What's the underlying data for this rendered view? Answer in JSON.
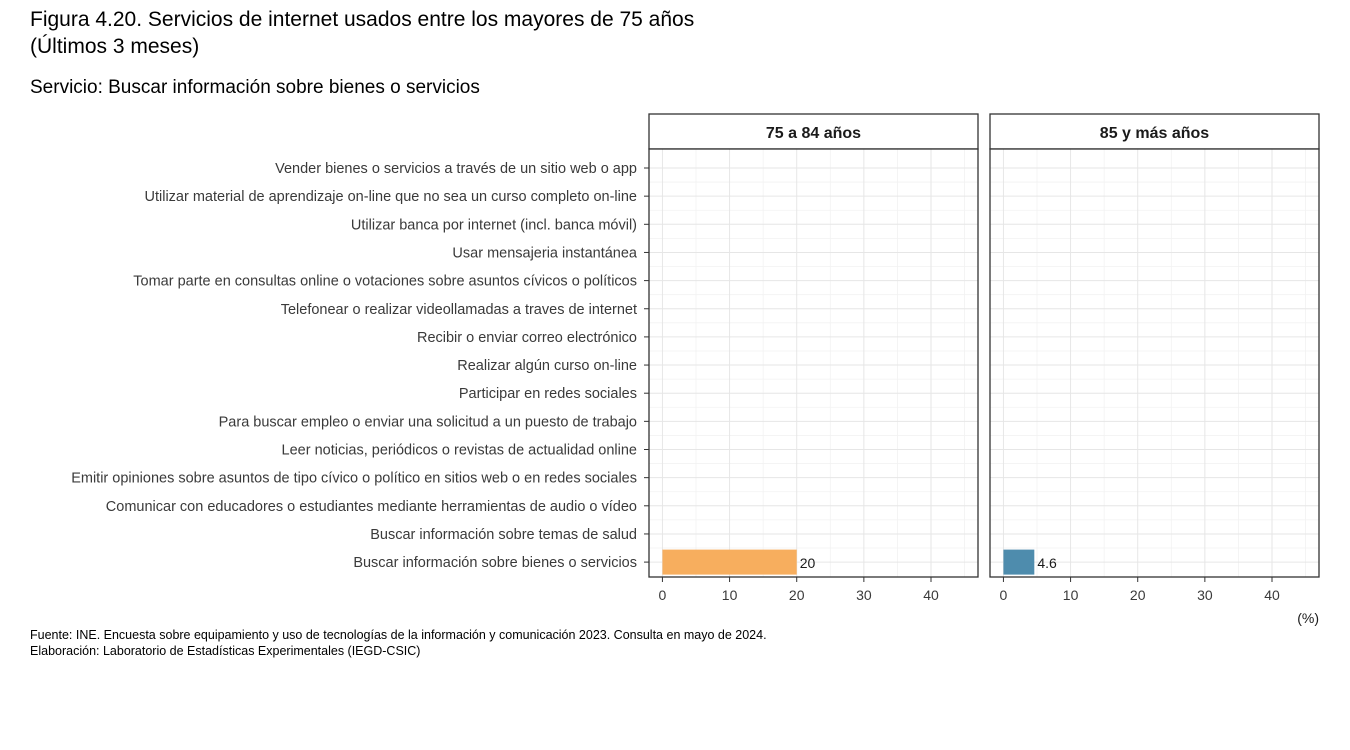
{
  "header": {
    "title_line1": "Figura 4.20.  Servicios de internet usados entre los mayores de 75 años",
    "title_line2": "(Últimos 3 meses)",
    "subtitle": "Servicio: Buscar información sobre bienes o servicios"
  },
  "footer": {
    "source": "Fuente: INE. Encuesta sobre equipamiento y uso de tecnologías de la información y comunicación 2023. Consulta en mayo de 2024.",
    "credit": "Elaboración: Laboratorio de Estadísticas Experimentales (IEGD-CSIC)"
  },
  "chart_data": {
    "type": "bar",
    "orientation": "horizontal",
    "categories": [
      "Vender bienes o servicios a través de un sitio web o app",
      "Utilizar material de aprendizaje on-line que no sea un curso completo on-line",
      "Utilizar banca  por internet (incl. banca móvil)",
      "Usar mensajeria instantánea",
      "Tomar parte en consultas online o votaciones sobre asuntos cívicos o políticos",
      "Telefonear o realizar videollamadas a traves de internet",
      "Recibir o enviar correo electrónico",
      "Realizar algún curso on-line",
      "Participar en redes sociales",
      "Para buscar empleo o enviar una solicitud a un puesto de trabajo",
      "Leer noticias, periódicos o revistas de actualidad online",
      "Emitir opiniones sobre asuntos de tipo cívico o político en sitios web o en redes sociales",
      "Comunicar con educadores o estudiantes mediante herramientas de audio o vídeo",
      "Buscar información sobre temas de salud",
      "Buscar información sobre bienes o servicios"
    ],
    "panels": [
      {
        "name": "75 a 84 años",
        "color": "#F7AE5E",
        "values": [
          null,
          null,
          null,
          null,
          null,
          null,
          null,
          null,
          null,
          null,
          null,
          null,
          null,
          null,
          20
        ],
        "value_labels": [
          "",
          "",
          "",
          "",
          "",
          "",
          "",
          "",
          "",
          "",
          "",
          "",
          "",
          "",
          "20"
        ]
      },
      {
        "name": "85 y más años",
        "color": "#4E8CAD",
        "values": [
          null,
          null,
          null,
          null,
          null,
          null,
          null,
          null,
          null,
          null,
          null,
          null,
          null,
          null,
          4.6
        ],
        "value_labels": [
          "",
          "",
          "",
          "",
          "",
          "",
          "",
          "",
          "",
          "",
          "",
          "",
          "",
          "",
          "4.6"
        ]
      }
    ],
    "xlim": [
      -2,
      47
    ],
    "xticks": [
      0,
      10,
      20,
      30,
      40
    ],
    "xtick_labels": [
      "0",
      "10",
      "20",
      "30",
      "40"
    ],
    "xlabel": "(%)",
    "ylabel": "",
    "grid": true
  }
}
